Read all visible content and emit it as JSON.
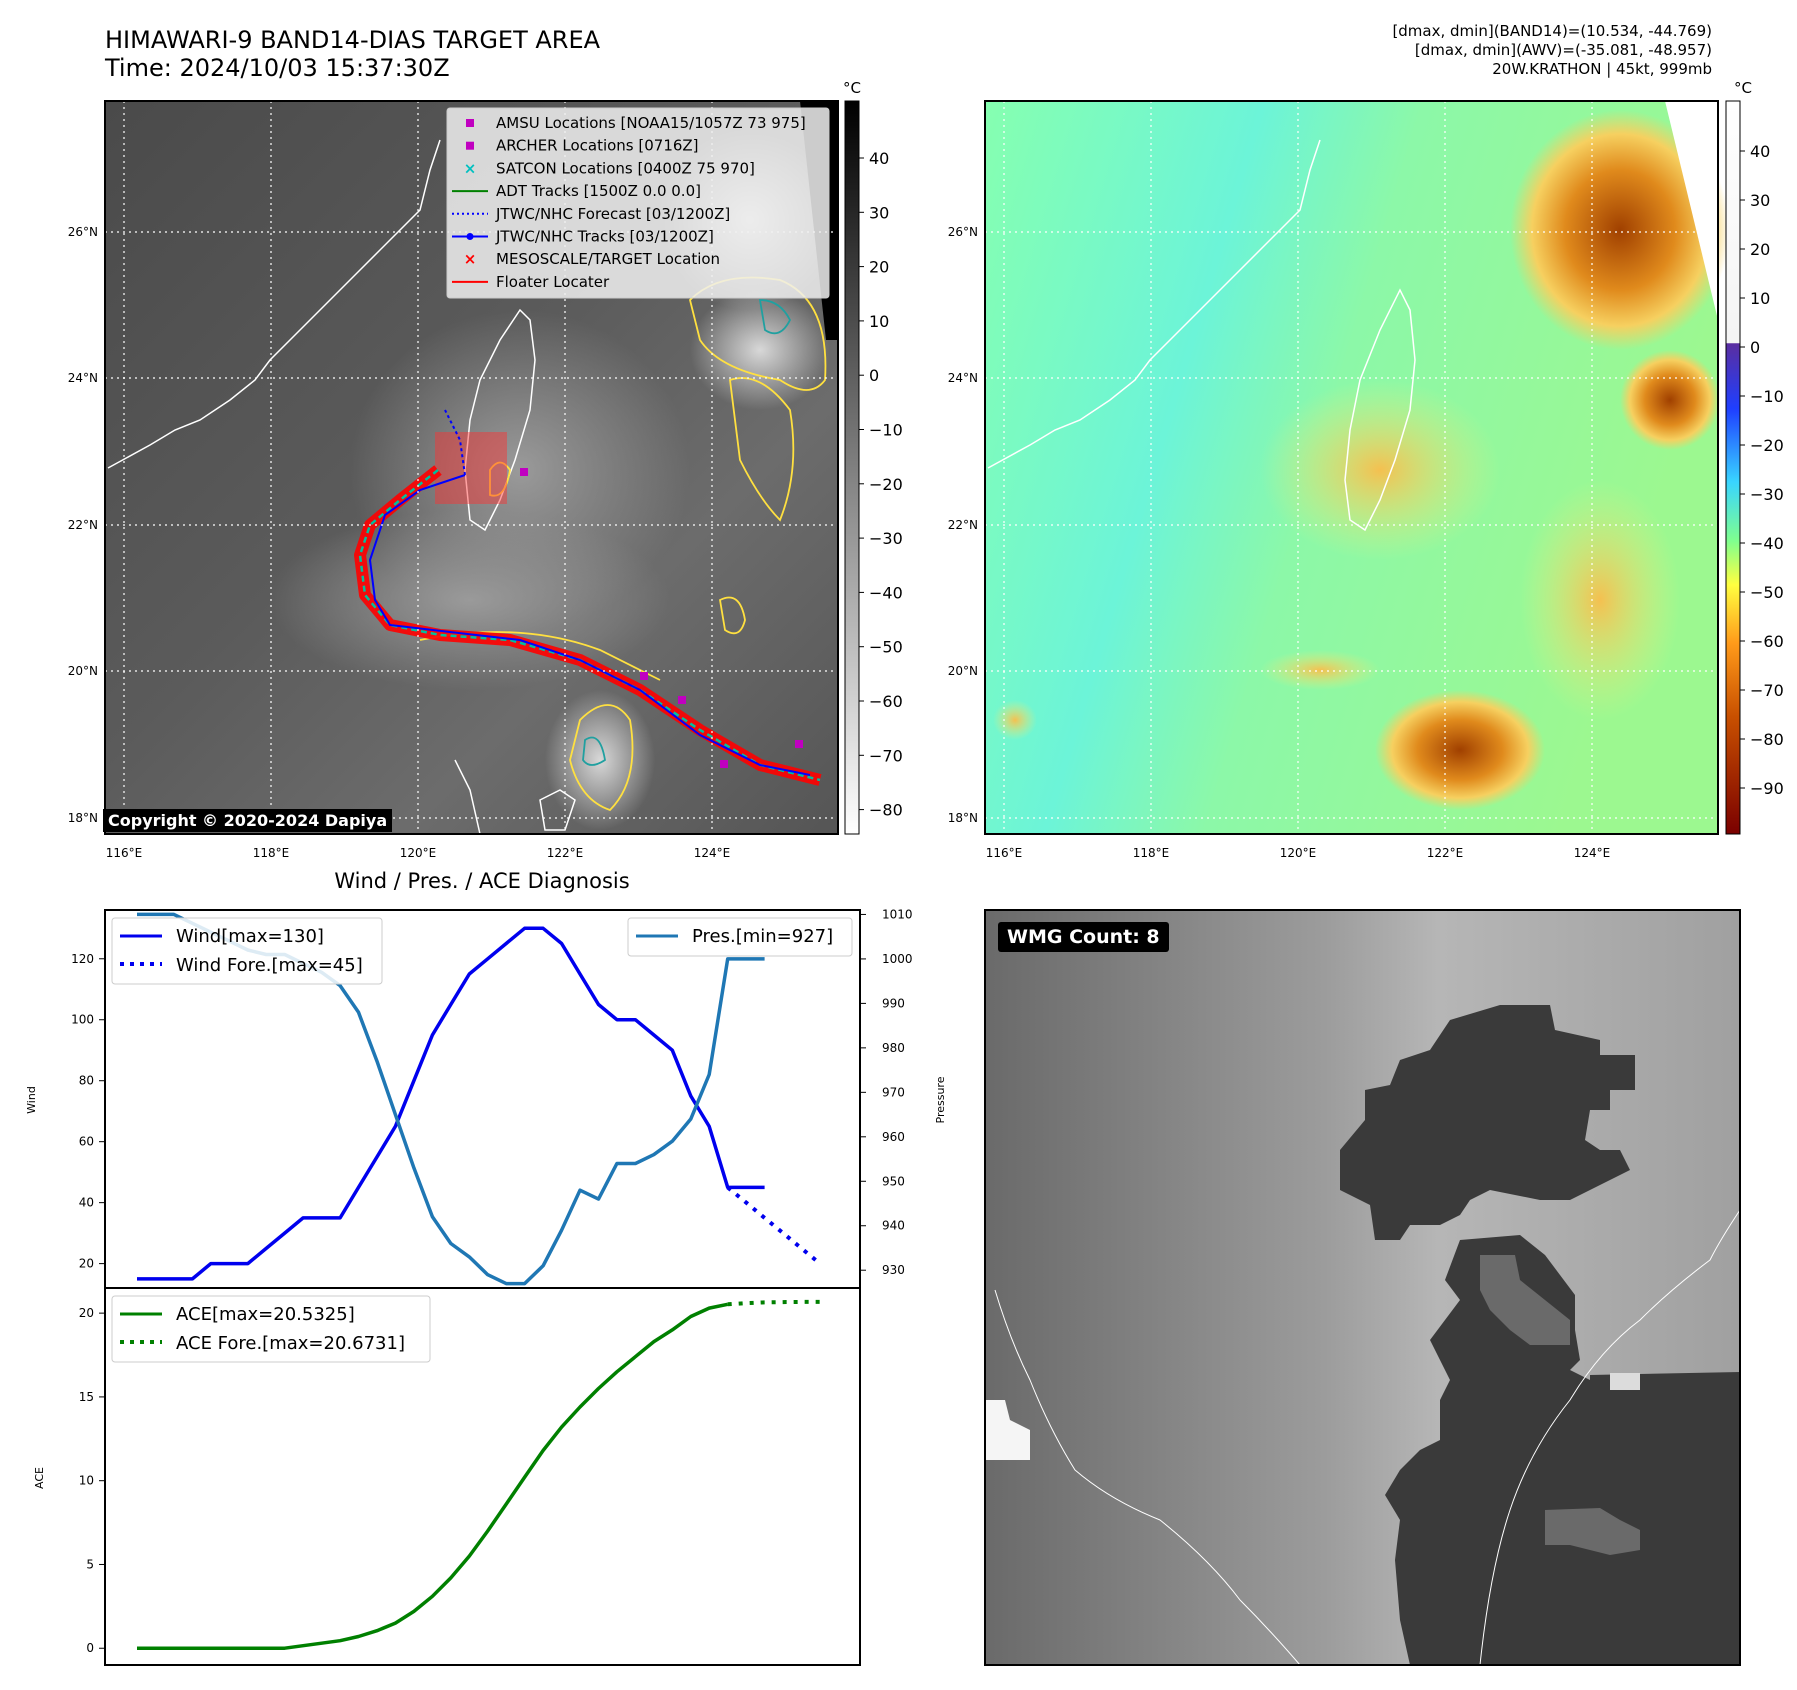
{
  "header": {
    "title_line1": "HIMAWARI-9 BAND14-DIAS TARGET AREA",
    "title_line2": "Time: 2024/10/03 15:37:30Z",
    "info_line1": "[dmax, dmin](BAND14)=(10.534, -44.769)",
    "info_line2": "[dmax, dmin](AWV)=(-35.081, -48.957)",
    "info_line3": "20W.KRATHON | 45kt, 999mb"
  },
  "map_axes": {
    "lon_labels": [
      "116°E",
      "118°E",
      "120°E",
      "122°E",
      "124°E"
    ],
    "lat_labels": [
      "26°N",
      "24°N",
      "22°N",
      "20°N",
      "18°N"
    ],
    "lon_range": [
      115.7,
      125.7
    ],
    "lat_range": [
      17.8,
      27.8
    ]
  },
  "ir_panel": {
    "copyright": "Copyright © 2020-2024 Dapiya",
    "colorbar_unit": "°C",
    "colorbar_ticks": [
      "40",
      "30",
      "20",
      "10",
      "0",
      "−10",
      "−20",
      "−30",
      "−40",
      "−50",
      "−60",
      "−70",
      "−80"
    ],
    "legend": [
      {
        "label": "AMSU Locations [NOAA15/1057Z 73 975]",
        "color": "#c000c0",
        "marker": "square"
      },
      {
        "label": "ARCHER Locations [0716Z]",
        "color": "#c000c0",
        "marker": "square"
      },
      {
        "label": "SATCON Locations [0400Z 75 970]",
        "color": "#00c0c0",
        "marker": "x"
      },
      {
        "label": "ADT Tracks [1500Z 0.0 0.0]",
        "color": "#008000",
        "marker": "line"
      },
      {
        "label": "JTWC/NHC Forecast [03/1200Z]",
        "color": "#0000ff",
        "marker": "dotted"
      },
      {
        "label": "JTWC/NHC Tracks [03/1200Z]",
        "color": "#0000ff",
        "marker": "line-dot"
      },
      {
        "label": "MESOSCALE/TARGET Location",
        "color": "#ff0000",
        "marker": "x"
      },
      {
        "label": "Floater Locater",
        "color": "#ff0000",
        "marker": "line"
      }
    ]
  },
  "awv_panel": {
    "colorbar_unit": "°C",
    "colorbar_ticks": [
      "40",
      "30",
      "20",
      "10",
      "0",
      "−10",
      "−20",
      "−30",
      "−40",
      "−50",
      "−60",
      "−70",
      "−80",
      "−90"
    ]
  },
  "diagnosis": {
    "title": "Wind / Pres. / ACE Diagnosis",
    "wind_ylabel": "Wind",
    "pres_ylabel": "Pressure",
    "ace_ylabel": "ACE",
    "wind_legend": [
      "Wind[max=130]",
      "Wind Fore.[max=45]"
    ],
    "pres_legend": "Pres.[min=927]",
    "ace_legend": [
      "ACE[max=20.5325]",
      "ACE Fore.[max=20.6731]"
    ]
  },
  "wmg_panel": {
    "badge": "WMG Count: 8"
  },
  "colors": {
    "wind": "#0000ee",
    "pressure": "#1f77b4",
    "ace": "#008000",
    "track": "#ff0000"
  },
  "chart_data": [
    {
      "type": "line",
      "title": "Wind / Pres. / ACE Diagnosis",
      "ylabel": "Wind",
      "ylim": [
        12,
        136
      ],
      "series": [
        {
          "name": "Wind[max=130]",
          "x": [
            0,
            2,
            4,
            6,
            8,
            10,
            12,
            14,
            16,
            18,
            20,
            22,
            24,
            26,
            28,
            30,
            32,
            34,
            36,
            38,
            40,
            42,
            44,
            46,
            48,
            50,
            52,
            54,
            56,
            58,
            60,
            62,
            64,
            66,
            68
          ],
          "values": [
            15,
            15,
            15,
            15,
            20,
            20,
            20,
            25,
            30,
            35,
            35,
            35,
            45,
            55,
            65,
            80,
            95,
            105,
            115,
            120,
            125,
            130,
            130,
            125,
            115,
            105,
            100,
            100,
            95,
            90,
            75,
            65,
            45,
            45,
            45
          ]
        },
        {
          "name": "Wind Fore.[max=45]",
          "x": [
            64,
            66,
            68,
            70,
            72,
            74
          ],
          "values": [
            45,
            40,
            35,
            30,
            25,
            20
          ]
        }
      ]
    },
    {
      "type": "line",
      "ylabel": "Pressure",
      "ylim": [
        926,
        1011
      ],
      "series": [
        {
          "name": "Pres.[min=927]",
          "x": [
            0,
            2,
            4,
            6,
            8,
            10,
            12,
            14,
            16,
            18,
            20,
            22,
            24,
            26,
            28,
            30,
            32,
            34,
            36,
            38,
            40,
            42,
            44,
            46,
            48,
            50,
            52,
            54,
            56,
            58,
            60,
            62,
            64,
            66,
            68
          ],
          "values": [
            1010,
            1010,
            1010,
            1008,
            1006,
            1004,
            1002,
            1001,
            1001,
            999,
            997,
            994,
            988,
            977,
            965,
            953,
            942,
            936,
            933,
            929,
            927,
            927,
            931,
            939,
            948,
            946,
            954,
            954,
            956,
            959,
            964,
            974,
            1000,
            1000,
            1000
          ]
        }
      ]
    },
    {
      "type": "line",
      "ylabel": "ACE",
      "ylim": [
        -1,
        21.5
      ],
      "series": [
        {
          "name": "ACE[max=20.5325]",
          "x": [
            0,
            2,
            4,
            6,
            8,
            10,
            12,
            14,
            16,
            18,
            20,
            22,
            24,
            26,
            28,
            30,
            32,
            34,
            36,
            38,
            40,
            42,
            44,
            46,
            48,
            50,
            52,
            54,
            56,
            58,
            60,
            62,
            64
          ],
          "values": [
            0,
            0,
            0,
            0,
            0,
            0,
            0,
            0,
            0,
            0.15,
            0.3,
            0.45,
            0.7,
            1.05,
            1.5,
            2.2,
            3.1,
            4.2,
            5.5,
            7.0,
            8.6,
            10.2,
            11.8,
            13.2,
            14.4,
            15.5,
            16.5,
            17.4,
            18.3,
            19.0,
            19.8,
            20.3,
            20.53
          ]
        },
        {
          "name": "ACE Fore.[max=20.6731]",
          "x": [
            64,
            66,
            68,
            70,
            72,
            74
          ],
          "values": [
            20.53,
            20.6,
            20.64,
            20.66,
            20.67,
            20.67
          ]
        }
      ]
    }
  ]
}
